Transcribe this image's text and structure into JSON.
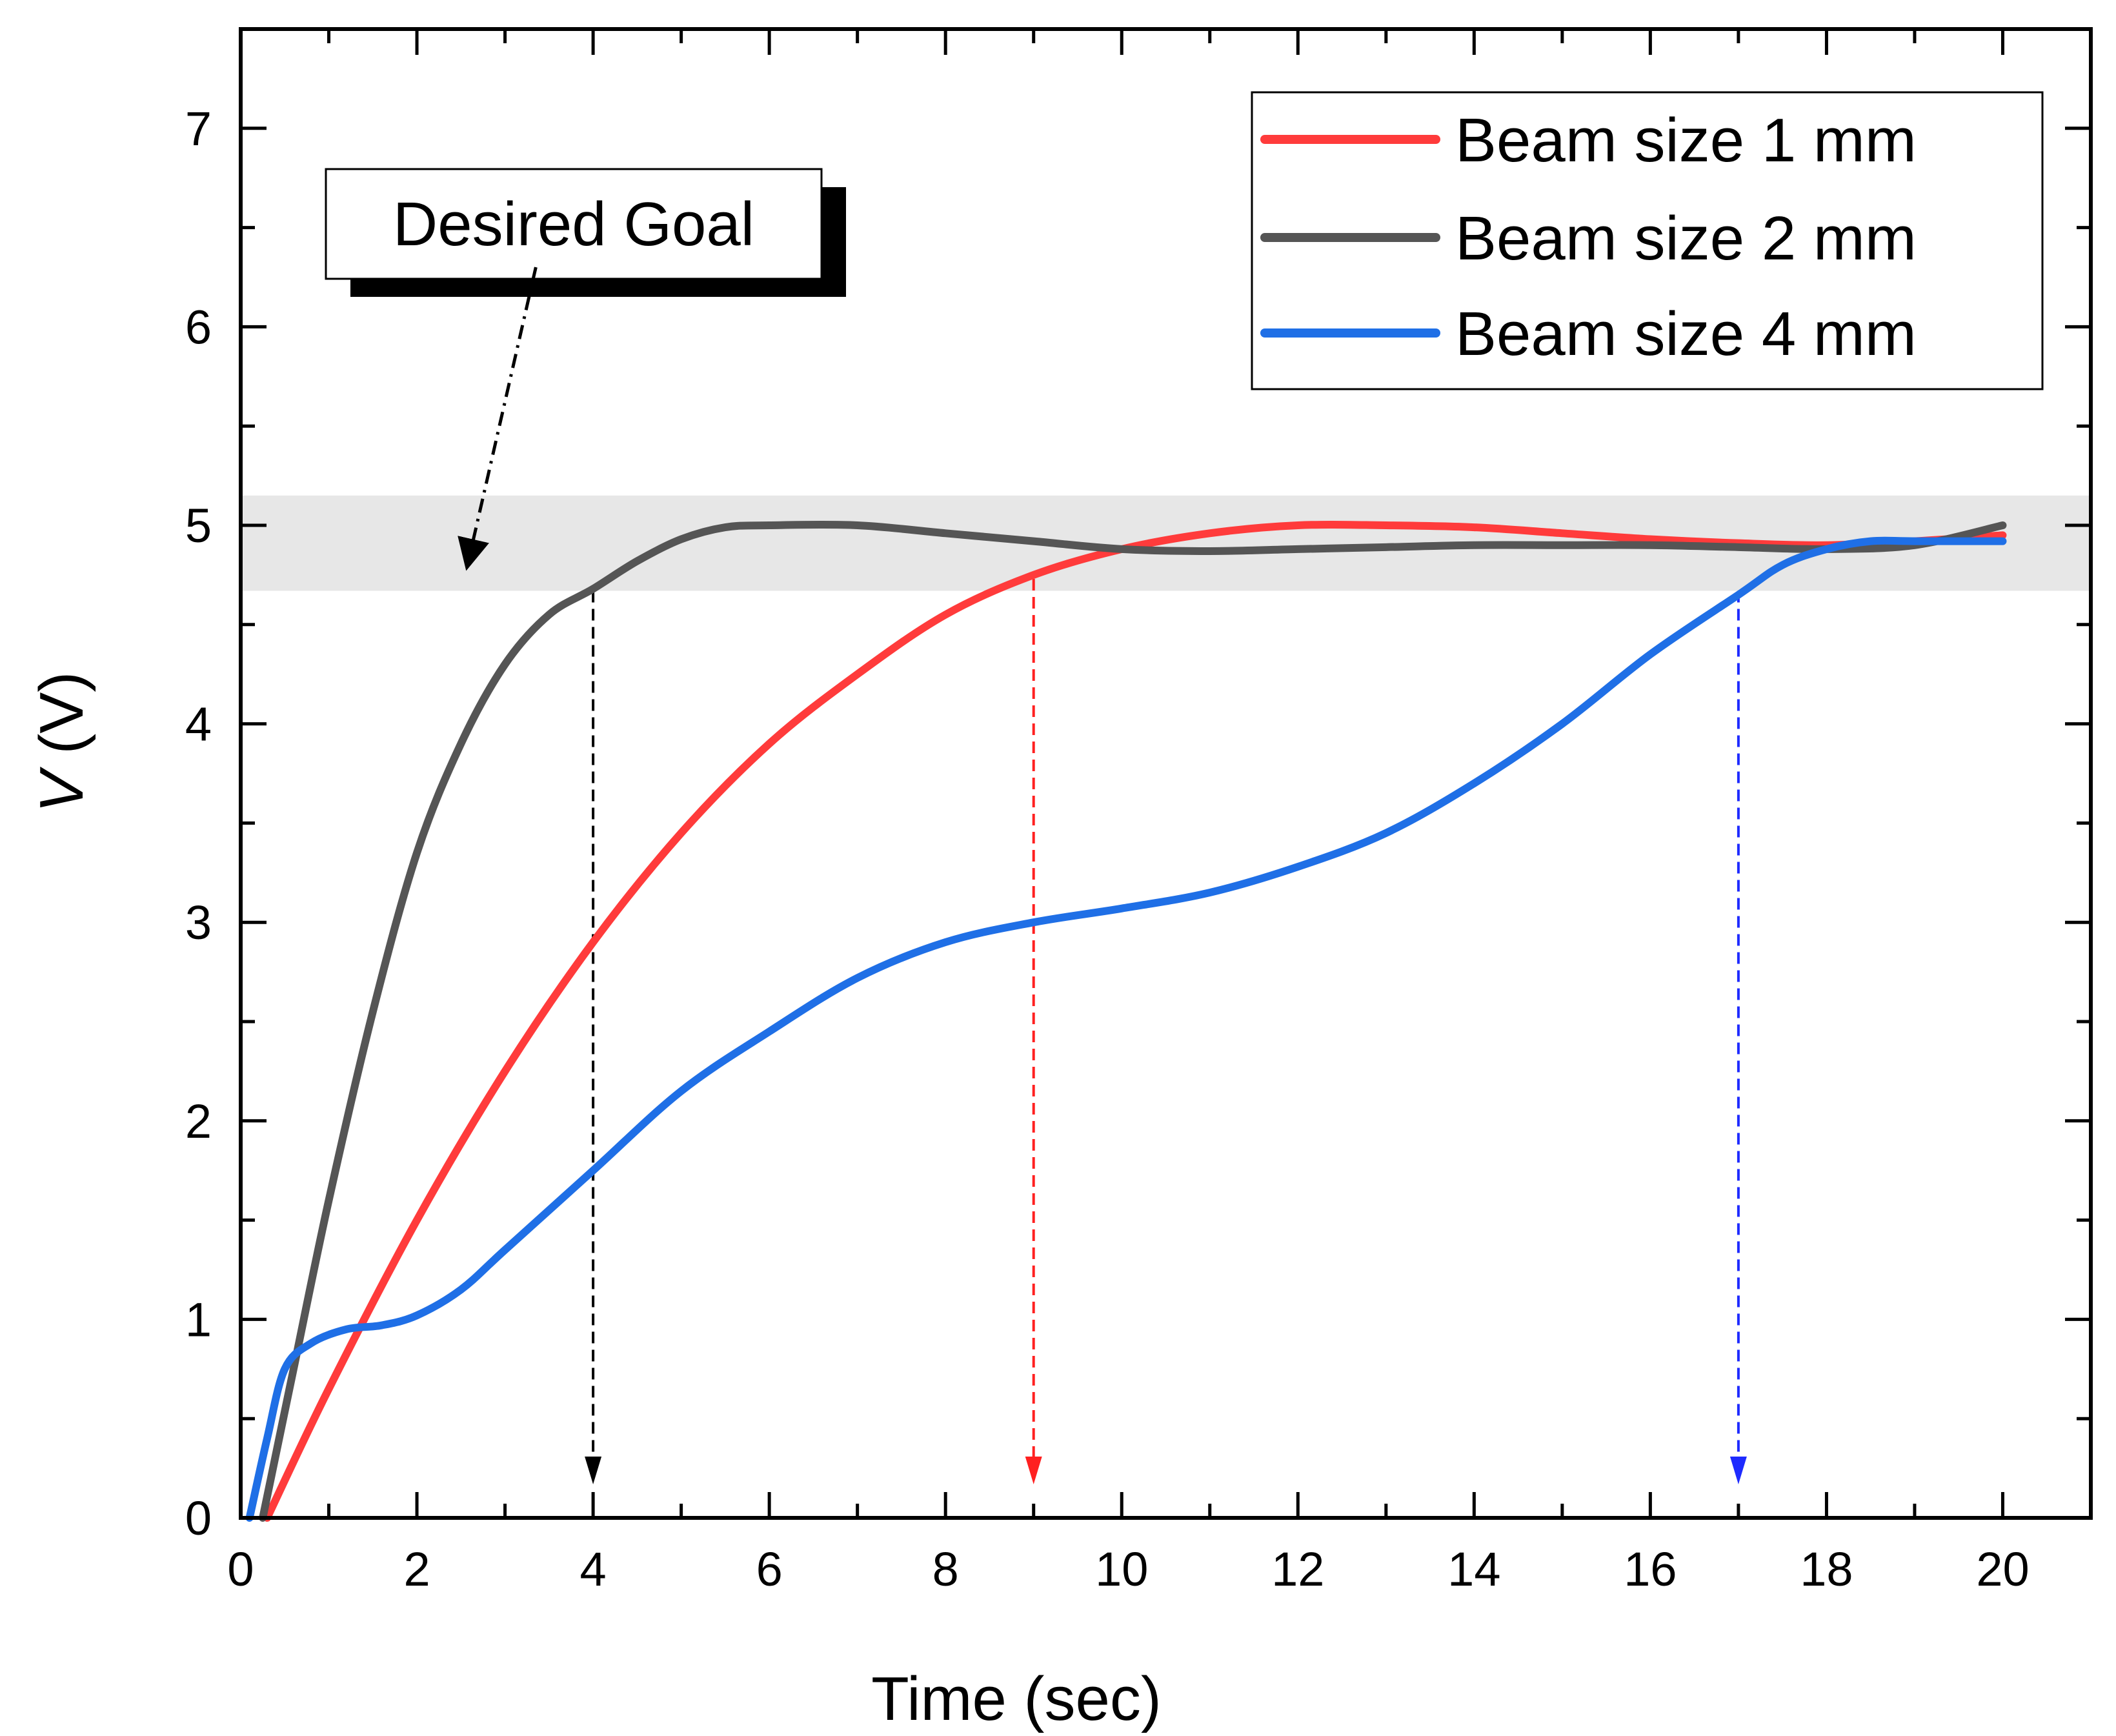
{
  "chart_data": {
    "type": "line",
    "xlabel": "Time (sec)",
    "ylabel_var": "V",
    "ylabel_unit": " (V)",
    "xlim": [
      0,
      21
    ],
    "ylim": [
      0,
      7.5
    ],
    "x_ticks": [
      0,
      2,
      4,
      6,
      8,
      10,
      12,
      14,
      16,
      18,
      20
    ],
    "y_ticks": [
      0,
      1,
      2,
      3,
      4,
      5,
      6,
      7
    ],
    "legend_position": "top-right",
    "grid": false,
    "series": [
      {
        "name": "Beam size 1 mm",
        "color": "#ff3b3b",
        "x": [
          0.3,
          1,
          2,
          3,
          4,
          5,
          6,
          7,
          8,
          9,
          10,
          11,
          12,
          13,
          14,
          15,
          16,
          17,
          18,
          19,
          20
        ],
        "y": [
          0,
          0.65,
          1.5,
          2.25,
          2.9,
          3.45,
          3.9,
          4.25,
          4.55,
          4.75,
          4.88,
          4.96,
          5.0,
          5.0,
          4.99,
          4.96,
          4.93,
          4.91,
          4.9,
          4.92,
          4.95
        ]
      },
      {
        "name": "Beam size 2 mm",
        "color": "#555555",
        "x": [
          0.25,
          0.6,
          1,
          1.5,
          2,
          2.5,
          3,
          3.5,
          4,
          4.5,
          5,
          5.5,
          6,
          7,
          8,
          9,
          10,
          11,
          12,
          13,
          14,
          15,
          16,
          17,
          18,
          19,
          20
        ],
        "y": [
          0,
          0.75,
          1.6,
          2.55,
          3.35,
          3.9,
          4.3,
          4.55,
          4.68,
          4.82,
          4.93,
          4.99,
          5.0,
          5.0,
          4.96,
          4.92,
          4.88,
          4.87,
          4.88,
          4.89,
          4.9,
          4.9,
          4.9,
          4.89,
          4.88,
          4.9,
          5.0
        ]
      },
      {
        "name": "Beam size 4 mm",
        "color": "#1f6fe6",
        "x": [
          0.1,
          0.3,
          0.5,
          0.8,
          1.2,
          1.6,
          2,
          2.5,
          3,
          4,
          5,
          6,
          7,
          8,
          9,
          10,
          11,
          12,
          13,
          14,
          15,
          16,
          17,
          17.5,
          18,
          18.5,
          19,
          20
        ],
        "y": [
          0,
          0.4,
          0.75,
          0.88,
          0.95,
          0.97,
          1.02,
          1.15,
          1.35,
          1.75,
          2.15,
          2.45,
          2.72,
          2.9,
          3.0,
          3.07,
          3.15,
          3.28,
          3.45,
          3.7,
          4.0,
          4.35,
          4.65,
          4.8,
          4.88,
          4.92,
          4.92,
          4.92
        ]
      }
    ],
    "target_band": {
      "y0": 4.67,
      "y1": 5.15,
      "color": "#e7e7e7"
    },
    "settle_markers": [
      {
        "x": 4,
        "y": 4.67,
        "color": "#000000"
      },
      {
        "x": 9,
        "y": 4.73,
        "color": "#ff2020"
      },
      {
        "x": 17,
        "y": 4.67,
        "color": "#1e2bff"
      }
    ],
    "annotation": {
      "text": "Desired Goal",
      "arrow_from": [
        3.35,
        6.3
      ],
      "arrow_to": [
        2.6,
        4.85
      ]
    }
  }
}
